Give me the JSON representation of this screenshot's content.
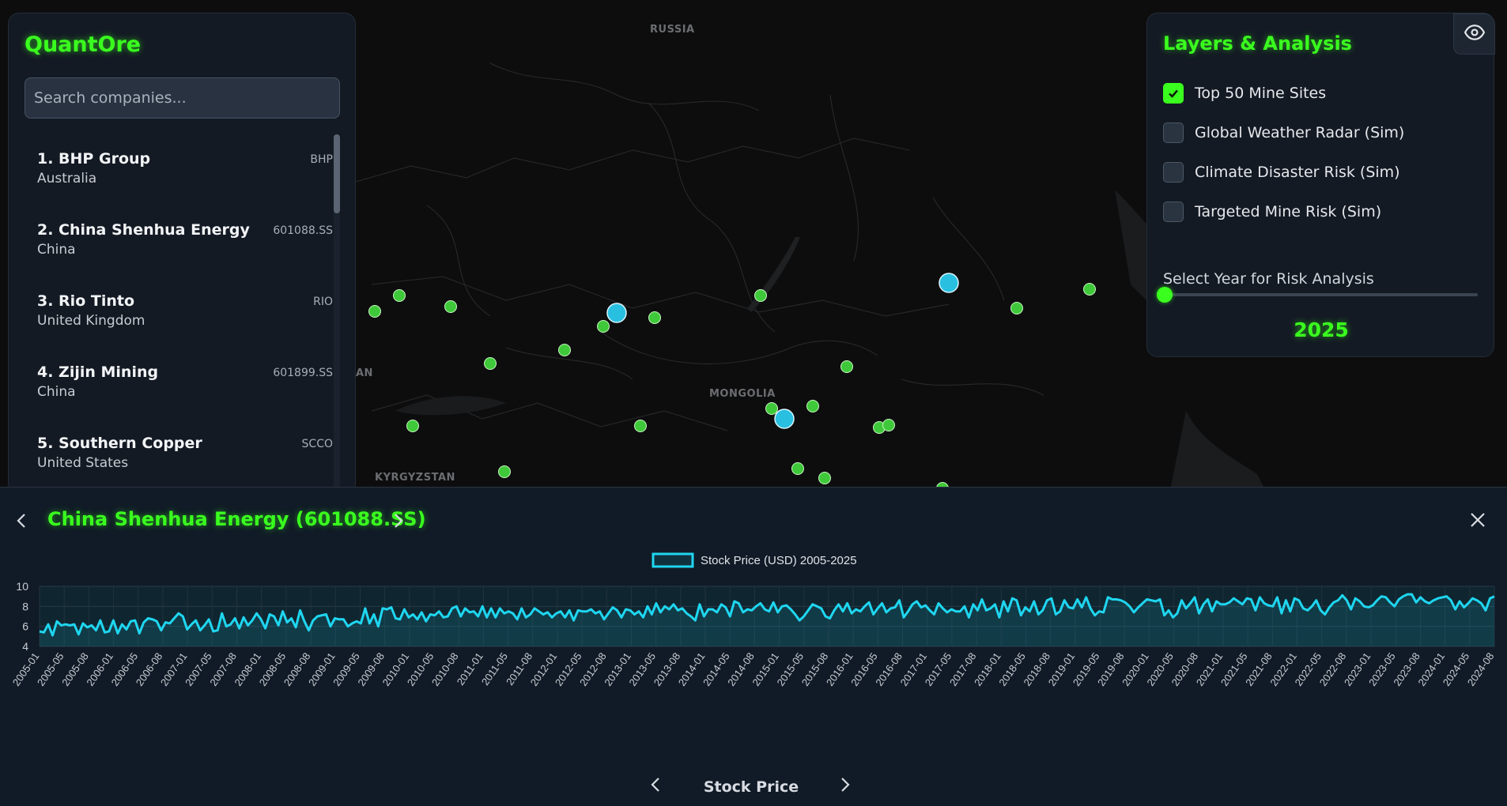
{
  "map": {
    "country_labels": [
      "RUSSIA",
      "MONGOLIA",
      "KYRGYZSTAN",
      "AN"
    ],
    "marker_colors": {
      "mine": "#3fc93a",
      "cluster": "#29bfe0"
    }
  },
  "sidebar": {
    "brand": "QuantOre",
    "search_placeholder": "Search companies...",
    "companies": [
      {
        "name": "1. BHP Group",
        "ticker": "BHP",
        "country": "Australia"
      },
      {
        "name": "2. China Shenhua Energy",
        "ticker": "601088.SS",
        "country": "China"
      },
      {
        "name": "3. Rio Tinto",
        "ticker": "RIO",
        "country": "United Kingdom"
      },
      {
        "name": "4. Zijin Mining",
        "ticker": "601899.SS",
        "country": "China"
      },
      {
        "name": "5. Southern Copper",
        "ticker": "SCCO",
        "country": "United States"
      }
    ]
  },
  "layers_panel": {
    "title": "Layers & Analysis",
    "toggle_icon": "eye-icon",
    "layers": [
      {
        "label": "Top 50 Mine Sites",
        "checked": true
      },
      {
        "label": "Global Weather Radar (Sim)",
        "checked": false
      },
      {
        "label": "Climate Disaster Risk (Sim)",
        "checked": false
      },
      {
        "label": "Targeted Mine Risk (Sim)",
        "checked": false
      }
    ],
    "year_label": "Select Year for Risk Analysis",
    "year_value": "2025",
    "year_slider_fraction": 0
  },
  "bottom_panel": {
    "title": "China Shenhua Energy (601088.SS)",
    "footer_tab": "Stock Price",
    "accent_color": "#3aff1e",
    "line_color": "#1fd6f0"
  },
  "chart_data": {
    "type": "line",
    "legend": "Stock Price (USD) 2005-2025",
    "ylim": [
      4,
      10
    ],
    "yticks": [
      4,
      6,
      8,
      10
    ],
    "grid": true,
    "x_tick_labels": [
      "2005-01",
      "2005-05",
      "2005-08",
      "2006-01",
      "2006-05",
      "2006-08",
      "2007-01",
      "2007-05",
      "2007-08",
      "2008-01",
      "2008-05",
      "2008-08",
      "2009-01",
      "2009-05",
      "2009-08",
      "2010-01",
      "2010-05",
      "2010-08",
      "2011-01",
      "2011-05",
      "2011-08",
      "2012-01",
      "2012-05",
      "2012-08",
      "2013-01",
      "2013-05",
      "2013-08",
      "2014-01",
      "2014-05",
      "2014-08",
      "2015-01",
      "2015-05",
      "2015-08",
      "2016-01",
      "2016-05",
      "2016-08",
      "2017-01",
      "2017-05",
      "2017-08",
      "2018-01",
      "2018-05",
      "2018-08",
      "2019-01",
      "2019-05",
      "2019-08",
      "2020-01",
      "2020-05",
      "2020-08",
      "2021-01",
      "2021-05",
      "2021-08",
      "2022-01",
      "2022-05",
      "2022-08",
      "2023-01",
      "2023-05",
      "2023-08",
      "2024-01",
      "2024-05",
      "2024-08"
    ],
    "series": [
      {
        "name": "Stock Price (USD) 2005-2025",
        "values": [
          5.5,
          5.4,
          6.2,
          5.1,
          6.5,
          6.1,
          6.2,
          6.1,
          6.2,
          5.2,
          6.3,
          5.9,
          6.1,
          5.6,
          6.6,
          5.4,
          5.5,
          6.6,
          5.3,
          6.2,
          5.7,
          6.5,
          6.6,
          5.3,
          6.4,
          6.8,
          6.7,
          6.5,
          5.6,
          6.4,
          6.3,
          6.8,
          7.3,
          7.0,
          5.7,
          6.2,
          6.6,
          5.6,
          6.1,
          6.7,
          5.5,
          5.6,
          7.3,
          6.0,
          6.2,
          6.8,
          5.8,
          6.9,
          6.1,
          6.6,
          7.3,
          6.7,
          5.8,
          7.2,
          7.0,
          6.1,
          7.5,
          6.4,
          6.8,
          5.9,
          7.6,
          6.5,
          5.6,
          6.6,
          7.0,
          7.1,
          7.2,
          6.0,
          6.8,
          6.7,
          6.7,
          6.0,
          6.3,
          6.5,
          6.3,
          7.8,
          6.3,
          7.2,
          6.0,
          7.8,
          7.7,
          7.9,
          6.8,
          6.7,
          7.7,
          6.9,
          7.2,
          6.7,
          7.4,
          6.5,
          7.2,
          7.1,
          7.5,
          6.9,
          7.0,
          7.8,
          8.0,
          7.0,
          7.8,
          7.4,
          7.5,
          7.0,
          8.0,
          6.9,
          7.8,
          6.9,
          7.8,
          7.3,
          7.5,
          7.3,
          6.7,
          7.8,
          6.9,
          7.2,
          7.8,
          7.5,
          7.2,
          7.4,
          6.9,
          7.3,
          7.5,
          6.9,
          7.6,
          6.6,
          7.6,
          7.5,
          7.5,
          7.7,
          7.3,
          7.5,
          6.7,
          7.3,
          7.9,
          7.6,
          6.9,
          7.7,
          7.6,
          7.2,
          7.5,
          6.9,
          8.0,
          7.2,
          8.3,
          7.4,
          8.0,
          7.7,
          8.2,
          7.6,
          7.8,
          7.3,
          7.0,
          6.6,
          8.2,
          7.0,
          7.7,
          7.7,
          7.4,
          8.2,
          7.9,
          7.0,
          8.5,
          8.3,
          7.4,
          7.7,
          7.6,
          8.0,
          8.3,
          7.7,
          7.5,
          8.4,
          7.4,
          8.0,
          8.1,
          7.7,
          7.2,
          6.6,
          7.0,
          7.6,
          8.2,
          8.0,
          7.8,
          7.0,
          6.8,
          7.6,
          8.2,
          7.5,
          8.3,
          7.3,
          7.7,
          7.5,
          8.0,
          8.4,
          7.2,
          7.8,
          8.3,
          7.4,
          7.8,
          7.9,
          8.6,
          6.9,
          7.5,
          8.2,
          8.5,
          7.9,
          8.1,
          7.6,
          7.2,
          8.3,
          7.8,
          7.4,
          7.7,
          7.5,
          7.5,
          8.0,
          6.9,
          8.2,
          7.6,
          8.7,
          7.6,
          7.8,
          8.2,
          6.9,
          8.5,
          7.5,
          8.8,
          8.6,
          7.1,
          7.9,
          7.5,
          8.5,
          7.2,
          7.6,
          8.6,
          8.8,
          7.2,
          7.5,
          8.6,
          7.9,
          7.8,
          8.7,
          7.9,
          8.9,
          7.8,
          7.1,
          7.5,
          7.4,
          8.9,
          8.7,
          8.7,
          8.6,
          8.4,
          8.0,
          7.4,
          7.9,
          8.3,
          8.7,
          8.6,
          8.5,
          8.7,
          7.1,
          7.6,
          6.9,
          7.3,
          8.6,
          7.8,
          8.3,
          8.9,
          7.3,
          8.2,
          8.7,
          7.5,
          8.5,
          8.2,
          8.2,
          8.4,
          8.8,
          8.5,
          8.2,
          8.8,
          8.7,
          7.6,
          8.9,
          8.3,
          8.1,
          8.0,
          8.9,
          7.3,
          8.6,
          7.5,
          8.8,
          8.6,
          7.8,
          7.6,
          8.0,
          8.6,
          7.6,
          7.2,
          7.9,
          8.4,
          8.6,
          9.1,
          8.6,
          7.7,
          8.8,
          8.5,
          8.0,
          7.9,
          8.1,
          8.6,
          9.0,
          8.9,
          8.4,
          8.0,
          8.7,
          9.0,
          9.2,
          9.2,
          8.4,
          8.9,
          8.5,
          8.3,
          8.6,
          8.8,
          8.9,
          9.0,
          8.6,
          7.7,
          8.5,
          7.9,
          8.3,
          8.8,
          8.6,
          8.3,
          7.6,
          8.8,
          9.0
        ]
      }
    ]
  }
}
